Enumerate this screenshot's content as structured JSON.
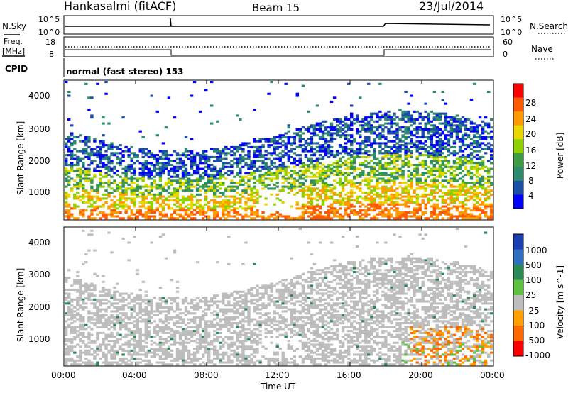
{
  "header": {
    "station": "Hankasalmi (fitACF)",
    "beam": "Beam 15",
    "date": "23/Jul/2014"
  },
  "chart_data": [
    {
      "type": "line",
      "name": "noise-panel",
      "left_label": "N.Sky",
      "right_label": "N.Search",
      "left_ticks": [
        "10^5",
        "10^0"
      ],
      "right_ticks": [
        "10^5",
        "10^0"
      ],
      "scale": "log"
    },
    {
      "type": "line",
      "name": "freq-nave-panel",
      "left_label_lines": [
        "Freq.",
        "[MHz]"
      ],
      "right_label": "Nave",
      "left_ticks": [
        "18",
        "8"
      ],
      "right_ticks": [
        "60",
        "0"
      ],
      "ylim_freq": [
        8,
        18
      ],
      "ylim_nave": [
        0,
        60
      ],
      "nave_steps": [
        {
          "x_hours": 0,
          "nave": 8
        },
        {
          "x_hours": 6,
          "nave": 0
        },
        {
          "x_hours": 18,
          "nave": 8
        },
        {
          "x_hours": 24,
          "nave": 8
        }
      ]
    },
    {
      "type": "heatmap",
      "name": "power",
      "cpid_label": "CPID",
      "cpid_text": "normal (fast stereo) 153",
      "ylabel": "Slant Range [km]",
      "yticks": [
        "4000",
        "3000",
        "2000",
        "1000"
      ],
      "ylim": [
        200,
        4600
      ],
      "colorbar_label": "Power [dB]",
      "colorbar_ticks": [
        "28",
        "24",
        "20",
        "16",
        "12",
        "8",
        "4"
      ],
      "colorbar_colors": [
        "#ff0000",
        "#ff5a00",
        "#ff9a00",
        "#e8d800",
        "#8fd000",
        "#3d9a45",
        "#2e8a6e",
        "#1a4fa8",
        "#0000ff"
      ]
    },
    {
      "type": "heatmap",
      "name": "velocity",
      "ylabel": "Slant Range [km]",
      "yticks": [
        "4000",
        "3000",
        "2000",
        "1000"
      ],
      "ylim": [
        200,
        4600
      ],
      "colorbar_label": "Velocity [m s^-1]",
      "colorbar_ticks": [
        "1000",
        "500",
        "100",
        "25",
        "-25",
        "-100",
        "-500",
        "-1000"
      ],
      "colorbar_colors": [
        "#1a3fb0",
        "#2f6fbf",
        "#2a8a55",
        "#5fc040",
        "#bdbdbd",
        "#ffa000",
        "#ff6a00",
        "#ff0000"
      ],
      "xlabel": "Time UT",
      "xticks": [
        "00:00",
        "04:00",
        "08:00",
        "12:00",
        "16:00",
        "20:00",
        "00:00"
      ],
      "xlim_hours": [
        0,
        24
      ]
    }
  ]
}
